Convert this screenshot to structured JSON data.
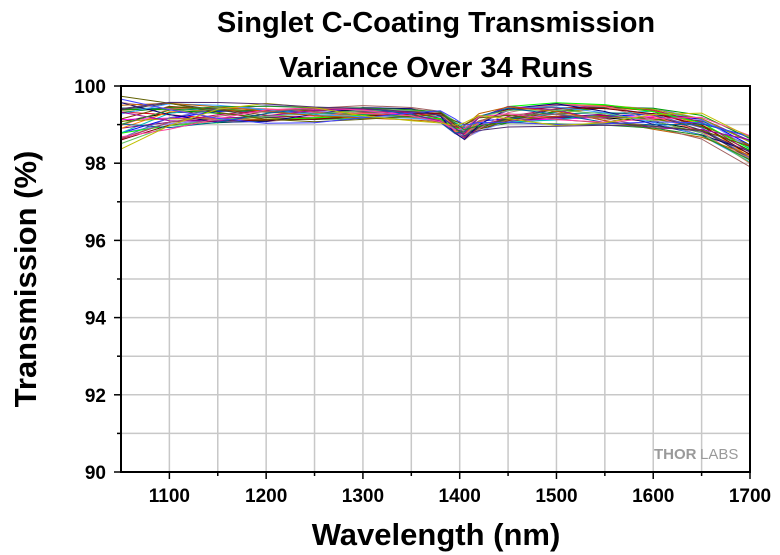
{
  "chart_data": {
    "type": "line",
    "title_lines": [
      "Singlet C-Coating Transmission",
      "Variance Over 34 Runs"
    ],
    "xlabel": "Wavelength (nm)",
    "ylabel": "Transmission (%)",
    "xlim": [
      1050,
      1700
    ],
    "ylim": [
      90,
      100
    ],
    "xticks": [
      1100,
      1200,
      1300,
      1400,
      1500,
      1600,
      1700
    ],
    "yticks": [
      90,
      92,
      94,
      96,
      98,
      100
    ],
    "grid": true,
    "legend": "none",
    "x": [
      1050,
      1100,
      1150,
      1200,
      1250,
      1300,
      1350,
      1380,
      1395,
      1405,
      1420,
      1450,
      1500,
      1550,
      1600,
      1650,
      1700
    ],
    "series_envelope": {
      "upper": [
        99.85,
        99.7,
        99.6,
        99.55,
        99.5,
        99.5,
        99.45,
        99.4,
        99.15,
        99.05,
        99.3,
        99.55,
        99.65,
        99.65,
        99.55,
        99.35,
        98.85
      ],
      "mean": [
        99.2,
        99.3,
        99.3,
        99.3,
        99.3,
        99.3,
        99.3,
        99.2,
        98.95,
        98.85,
        99.0,
        99.2,
        99.3,
        99.3,
        99.2,
        99.0,
        98.5
      ],
      "lower": [
        98.3,
        98.8,
        98.95,
        99.0,
        99.05,
        99.1,
        99.1,
        99.0,
        98.7,
        98.55,
        98.75,
        98.9,
        98.95,
        98.95,
        98.85,
        98.6,
        97.85
      ]
    },
    "run_count": 34,
    "series_colors": [
      "#000000",
      "#e0001b",
      "#0000ff",
      "#008000",
      "#ff00ff",
      "#00c0c0",
      "#808000",
      "#800080",
      "#ff8000",
      "#008080",
      "#8080ff",
      "#804000",
      "#00a000",
      "#c00060",
      "#404040",
      "#a0a000",
      "#6060c0",
      "#c08080",
      "#00ff00",
      "#ff6060",
      "#000080",
      "#800000",
      "#40a0ff",
      "#a000a0",
      "#60c060",
      "#c06000",
      "#0060a0",
      "#a06060",
      "#606000",
      "#ff40a0",
      "#209020",
      "#4040ff",
      "#c0c000",
      "#503070"
    ],
    "watermark": {
      "bold": "THOR",
      "regular": "LABS"
    }
  }
}
